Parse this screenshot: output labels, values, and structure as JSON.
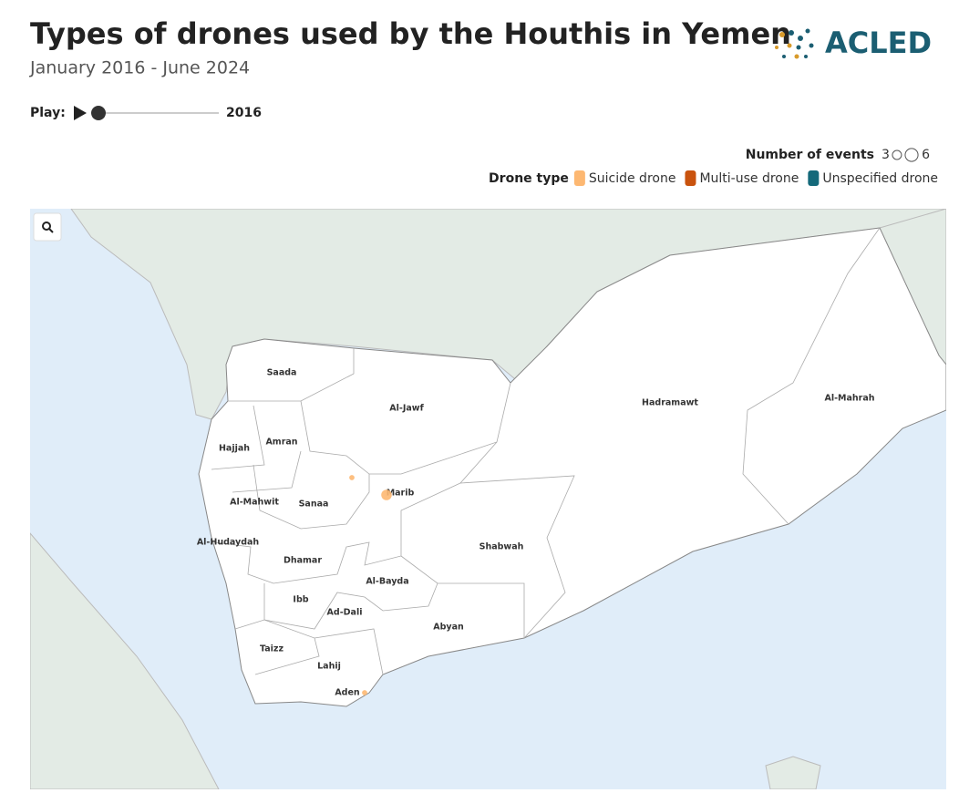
{
  "header": {
    "title": "Types of drones used by the Houthis in Yemen",
    "subtitle": "January 2016 - June 2024",
    "logo": "ACLED"
  },
  "player": {
    "label": "Play:",
    "year": 2016
  },
  "legend": {
    "size_title": "Number of events",
    "size_values": [
      3,
      6
    ],
    "color_title": "Drone type",
    "types": [
      {
        "name": "Suicide drone",
        "color": "#fdb872"
      },
      {
        "name": "Multi-use drone",
        "color": "#c9530e"
      },
      {
        "name": "Unspecified drone",
        "color": "#14697a"
      }
    ]
  },
  "map": {
    "regions": [
      "Saada",
      "Al-Jawf",
      "Hadramawt",
      "Al-Mahrah",
      "Hajjah",
      "Amran",
      "Al-Mahwit",
      "Sanaa",
      "Marib",
      "Al-Hudaydah",
      "Shabwah",
      "Dhamar",
      "Al-Bayda",
      "Ibb",
      "Ad-Dali",
      "Abyan",
      "Taizz",
      "Lahij",
      "Aden"
    ],
    "events": [
      {
        "count": 1,
        "color": "#fdb872"
      },
      {
        "count": 4,
        "color": "#fdb872"
      },
      {
        "count": 1,
        "color": "#fdb872"
      }
    ]
  }
}
